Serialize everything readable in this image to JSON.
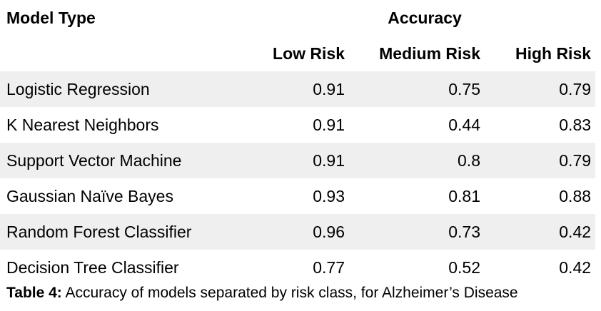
{
  "table": {
    "header_model_type": "Model Type",
    "header_accuracy": "Accuracy",
    "subheaders": [
      "Low Risk",
      "Medium Risk",
      "High Risk"
    ],
    "rows": [
      {
        "model": "Logistic Regression",
        "low": "0.91",
        "medium": "0.75",
        "high": "0.79"
      },
      {
        "model": "K Nearest Neighbors",
        "low": "0.91",
        "medium": "0.44",
        "high": "0.83"
      },
      {
        "model": "Support Vector Machine",
        "low": "0.91",
        "medium": "0.8",
        "high": "0.79"
      },
      {
        "model": "Gaussian Naïve Bayes",
        "low": "0.93",
        "medium": "0.81",
        "high": "0.88"
      },
      {
        "model": "Random Forest Classifier",
        "low": "0.96",
        "medium": "0.73",
        "high": "0.42"
      },
      {
        "model": "Decision Tree Classifier",
        "low": "0.77",
        "medium": "0.52",
        "high": "0.42"
      }
    ],
    "row_shading_color": "#efefef"
  },
  "caption": {
    "label": "Table 4:",
    "text": " Accuracy of models separated by risk class, for Alzheimer’s Disease"
  }
}
